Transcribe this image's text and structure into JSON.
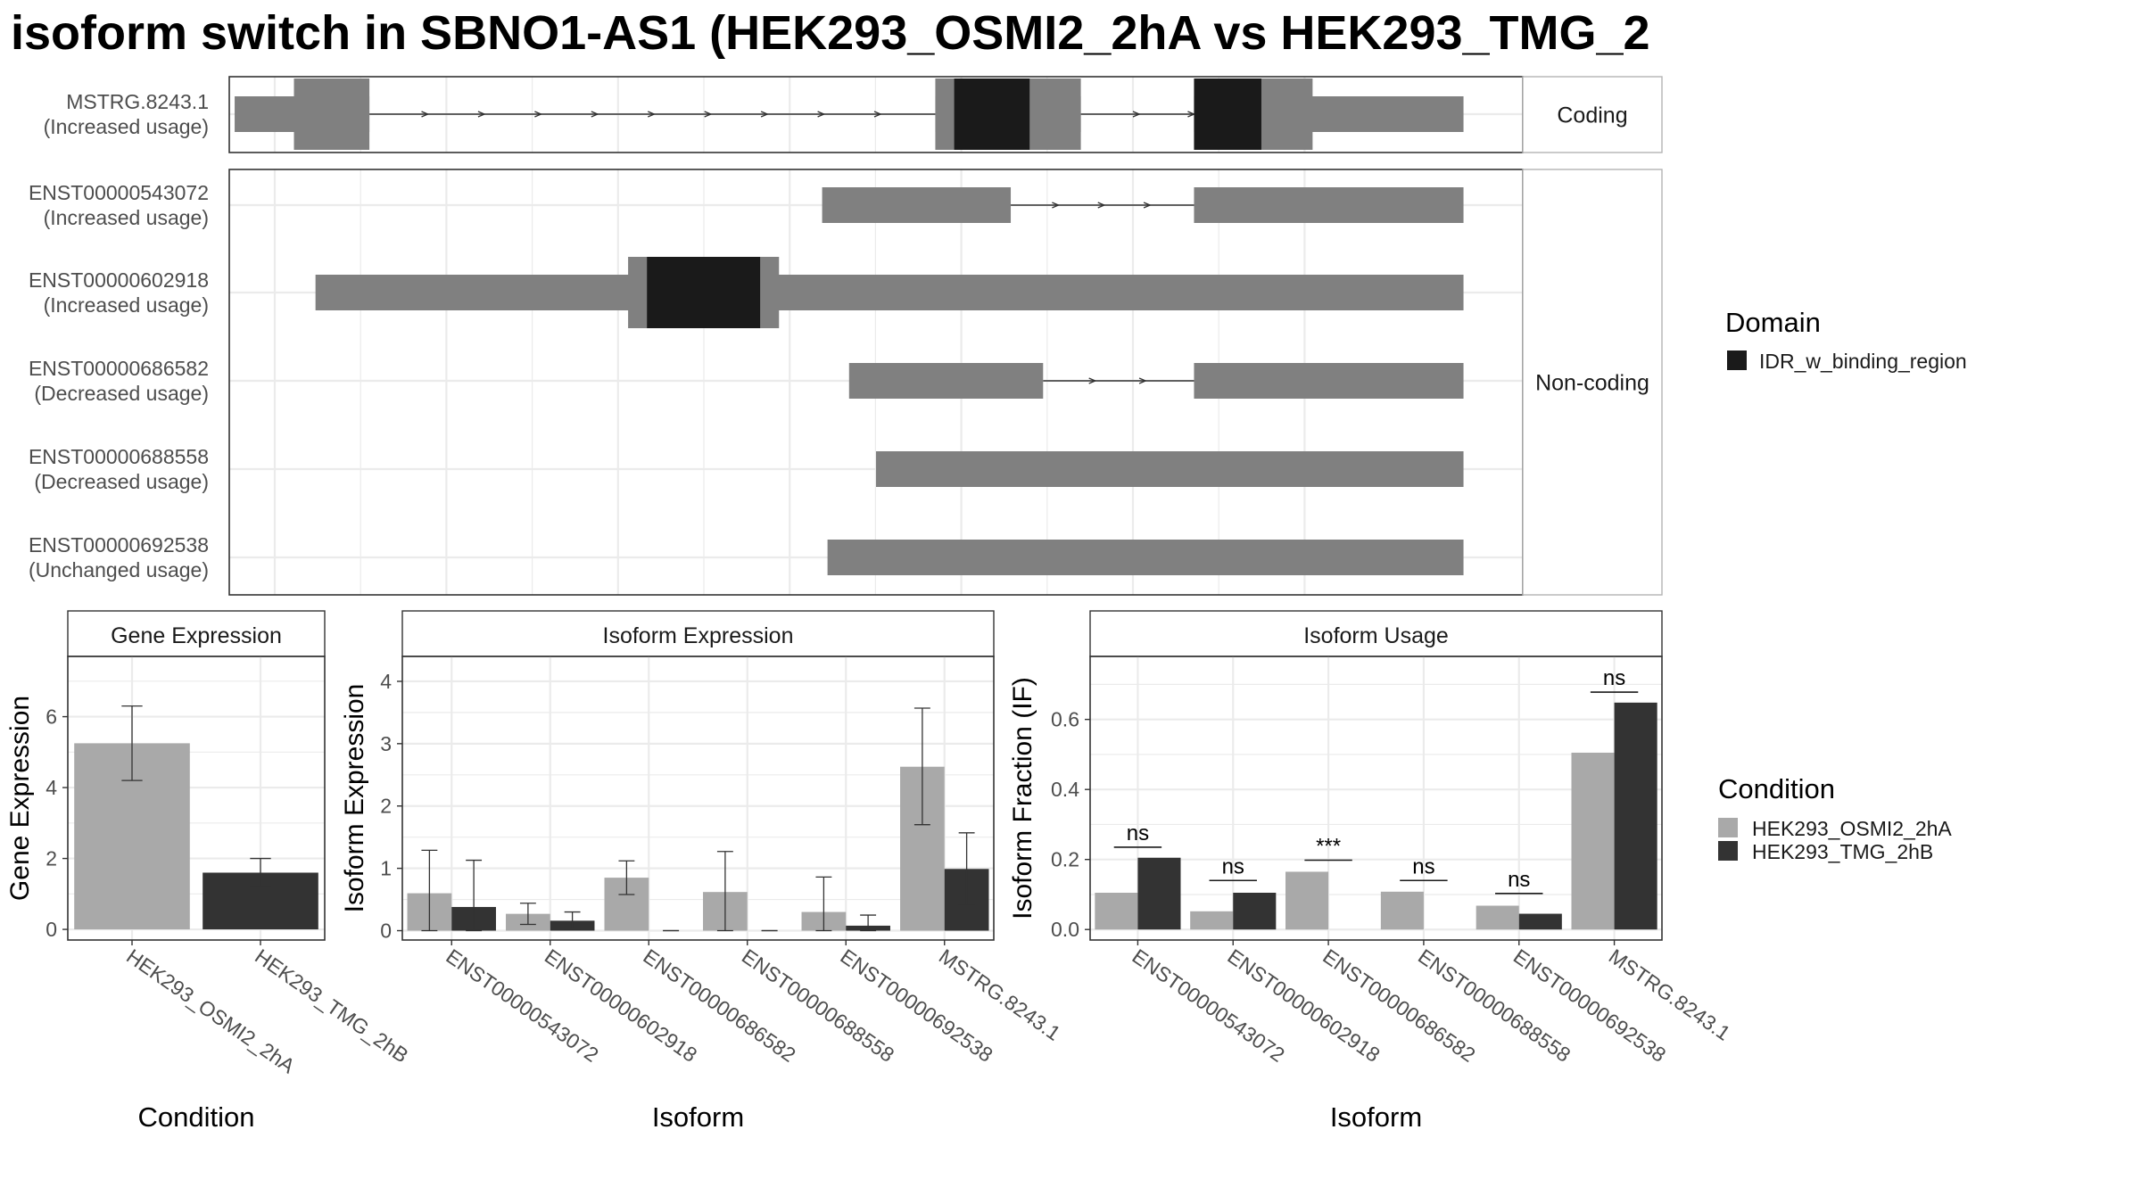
{
  "title": "isoform switch in SBNO1-AS1 (HEK293_OSMI2_2hA vs HEK293_TMG_2",
  "colors": {
    "condition_a": "#a9a9a9",
    "condition_b": "#333333",
    "domain": "#1a1a1a",
    "exon": "#808080",
    "grid": "#ebebeb",
    "strip_bg": "#ffffff",
    "panel_border": "#333333"
  },
  "legend_domain": {
    "title": "Domain",
    "items": [
      "IDR_w_binding_region"
    ]
  },
  "legend_condition": {
    "title": "Condition",
    "items": [
      "HEK293_OSMI2_2hA",
      "HEK293_TMG_2hB"
    ]
  },
  "chart_data": [
    {
      "type": "gene-structure",
      "x_range": [
        0,
        24
      ],
      "facets": [
        {
          "label": "Coding",
          "transcripts": [
            0
          ]
        },
        {
          "label": "Non-coding",
          "transcripts": [
            1,
            2,
            3,
            4,
            5
          ]
        }
      ],
      "transcripts": [
        {
          "name": "MSTRG.8243.1",
          "usage": "(Increased usage)",
          "exons": [
            [
              0.1,
              2.6
            ],
            [
              13.1,
              15.8
            ],
            [
              17.9,
              22.9
            ]
          ],
          "thick": [
            [
              1.2,
              2.6
            ],
            [
              13.1,
              15.8
            ],
            [
              17.9,
              20.1
            ]
          ],
          "domains": [
            [
              13.45,
              14.85
            ],
            [
              17.9,
              19.15
            ]
          ]
        },
        {
          "name": "ENST00000543072",
          "usage": "(Increased usage)",
          "exons": [
            [
              11.0,
              14.5
            ],
            [
              17.9,
              22.9
            ]
          ],
          "thick": [],
          "domains": []
        },
        {
          "name": "ENST00000602918",
          "usage": "(Increased usage)",
          "exons": [
            [
              1.6,
              22.9
            ]
          ],
          "thick": [
            [
              7.4,
              10.2
            ]
          ],
          "domains": [
            [
              7.75,
              9.85
            ]
          ]
        },
        {
          "name": "ENST00000686582",
          "usage": "(Decreased usage)",
          "exons": [
            [
              11.5,
              15.1
            ],
            [
              17.9,
              22.9
            ]
          ],
          "thick": [],
          "domains": []
        },
        {
          "name": "ENST00000688558",
          "usage": "(Decreased usage)",
          "exons": [
            [
              12.0,
              22.9
            ]
          ],
          "thick": [],
          "domains": []
        },
        {
          "name": "ENST00000692538",
          "usage": "(Unchanged usage)",
          "exons": [
            [
              11.1,
              22.9
            ]
          ],
          "thick": [],
          "domains": []
        }
      ]
    },
    {
      "type": "bar",
      "title": "Gene Expression",
      "xlabel": "Condition",
      "ylabel": "Gene Expression",
      "categories": [
        "HEK293_OSMI2_2hA",
        "HEK293_TMG_2hB"
      ],
      "values": [
        5.25,
        1.6
      ],
      "errors": [
        [
          4.2,
          6.3
        ],
        [
          1.2,
          2.0
        ]
      ],
      "ylim": [
        -0.3,
        7.7
      ],
      "yticks": [
        0,
        2,
        4,
        6
      ],
      "grid": true
    },
    {
      "type": "bar",
      "title": "Isoform Expression",
      "xlabel": "Isoform",
      "ylabel": "Isoform Expression",
      "categories": [
        "ENST00000543072",
        "ENST00000602918",
        "ENST00000686582",
        "ENST00000688558",
        "ENST00000692538",
        "MSTRG.8243.1"
      ],
      "series": [
        {
          "name": "HEK293_OSMI2_2hA",
          "values": [
            0.6,
            0.27,
            0.85,
            0.62,
            0.3,
            2.63
          ],
          "errors": [
            [
              0.0,
              1.29
            ],
            [
              0.1,
              0.44
            ],
            [
              0.58,
              1.12
            ],
            [
              0.0,
              1.27
            ],
            [
              0.0,
              0.86
            ],
            [
              1.7,
              3.57
            ]
          ]
        },
        {
          "name": "HEK293_TMG_2hB",
          "values": [
            0.38,
            0.16,
            0.0,
            0.0,
            0.08,
            0.99
          ],
          "errors": [
            [
              0.0,
              1.13
            ],
            [
              0.02,
              0.3
            ],
            [
              0.0,
              0.0
            ],
            [
              0.0,
              0.0
            ],
            [
              0.0,
              0.25
            ],
            [
              0.41,
              1.57
            ]
          ]
        }
      ],
      "ylim": [
        -0.15,
        4.4
      ],
      "yticks": [
        0,
        1,
        2,
        3,
        4
      ],
      "grid": true
    },
    {
      "type": "bar",
      "title": "Isoform Usage",
      "xlabel": "Isoform",
      "ylabel": "Isoform Fraction (IF)",
      "categories": [
        "ENST00000543072",
        "ENST00000602918",
        "ENST00000686582",
        "ENST00000688558",
        "ENST00000692538",
        "MSTRG.8243.1"
      ],
      "series": [
        {
          "name": "HEK293_OSMI2_2hA",
          "values": [
            0.105,
            0.052,
            0.165,
            0.108,
            0.068,
            0.505
          ]
        },
        {
          "name": "HEK293_TMG_2hB",
          "values": [
            0.205,
            0.105,
            0.0,
            0.0,
            0.045,
            0.648
          ]
        }
      ],
      "significance": [
        {
          "label": "ns",
          "y": 0.235
        },
        {
          "label": "ns",
          "y": 0.14
        },
        {
          "label": "***",
          "y": 0.198
        },
        {
          "label": "ns",
          "y": 0.14
        },
        {
          "label": "ns",
          "y": 0.103
        },
        {
          "label": "ns",
          "y": 0.678
        }
      ],
      "ylim": [
        -0.03,
        0.78
      ],
      "yticks": [
        0.0,
        0.2,
        0.4,
        0.6
      ],
      "grid": true
    }
  ]
}
